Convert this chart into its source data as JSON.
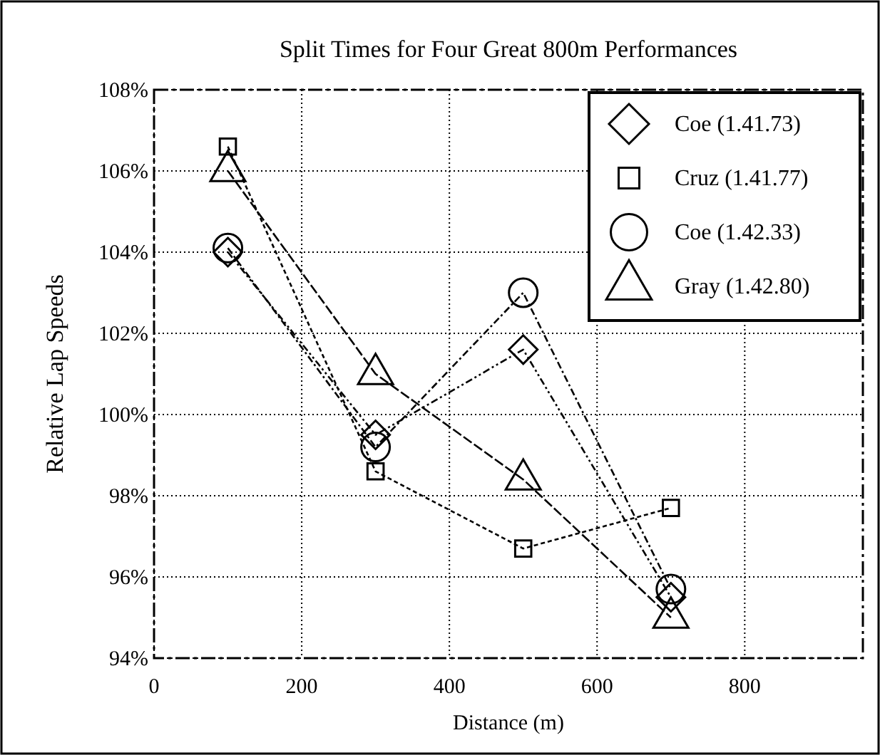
{
  "chart_data": {
    "type": "line",
    "title": "Split Times for Four Great 800m Performances",
    "xlabel": "Distance (m)",
    "ylabel": "Relative Lap Speeds",
    "x": [
      100,
      300,
      500,
      700
    ],
    "series": [
      {
        "name": "Coe (1.41.73)",
        "color": "#000000",
        "marker": "diamond",
        "line_style": "dashed",
        "values": [
          104.0,
          99.5,
          101.6,
          95.5
        ]
      },
      {
        "name": "Cruz (1.41.77)",
        "color": "#000000",
        "marker": "square",
        "line_style": "dashed",
        "values": [
          106.6,
          98.6,
          96.7,
          97.7
        ]
      },
      {
        "name": "Coe (1.42.33)",
        "color": "#000000",
        "marker": "circle",
        "line_style": "dashed",
        "values": [
          104.1,
          99.2,
          103.0,
          95.7
        ]
      },
      {
        "name": "Gray (1.42.80)",
        "color": "#000000",
        "marker": "triangle",
        "line_style": "dashed",
        "values": [
          106.0,
          101.0,
          98.4,
          95.0
        ]
      }
    ],
    "xlim": [
      0,
      960
    ],
    "xticks": [
      0,
      200,
      400,
      600,
      800
    ],
    "ylim": [
      94,
      108
    ],
    "yticks": [
      {
        "value": 94,
        "label": "94%"
      },
      {
        "value": 96,
        "label": "96%"
      },
      {
        "value": 98,
        "label": "98%"
      },
      {
        "value": 100,
        "label": "100%"
      },
      {
        "value": 102,
        "label": "102%"
      },
      {
        "value": 104,
        "label": "104%"
      },
      {
        "value": 106,
        "label": "106%"
      },
      {
        "value": 108,
        "label": "108%"
      }
    ],
    "grid": true,
    "legend": "top right"
  }
}
